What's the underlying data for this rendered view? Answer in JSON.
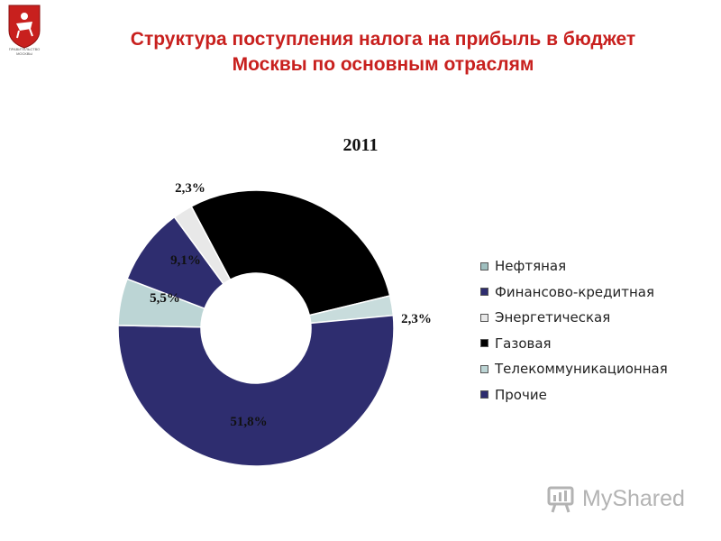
{
  "header": {
    "title_line1": "Структура поступления налога на прибыль в бюджет",
    "title_line2": "Москвы по основным отраслям"
  },
  "logo": {
    "caption_line1": "ПРАВИТЕЛЬСТВО",
    "caption_line2": "МОСКВЫ",
    "icon": "moscow-coat-of-arms-icon"
  },
  "watermark": {
    "text": "MyShared",
    "icon": "presentation-board-icon"
  },
  "chart_data": {
    "type": "pie",
    "variant": "doughnut",
    "title": "2011",
    "legend_position": "right",
    "slices": [
      {
        "name": "Газовая",
        "value": 29.0,
        "label": "",
        "color": "#000000"
      },
      {
        "name": "Нефтяная",
        "value": 2.3,
        "label": "2,3%",
        "color": "#c8dcdc"
      },
      {
        "name": "Прочие",
        "value": 51.8,
        "label": "51,8%",
        "color": "#2e2d6f"
      },
      {
        "name": "Телекоммуникационная",
        "value": 5.5,
        "label": "5,5%",
        "color": "#bcd5d5"
      },
      {
        "name": "Финансово-кредитная",
        "value": 9.1,
        "label": "9,1%",
        "color": "#2e2d6f"
      },
      {
        "name": "Энергетическая",
        "value": 2.3,
        "label": "2,3%",
        "color": "#e8e8e8"
      }
    ],
    "legend": [
      {
        "label": "Нефтяная",
        "color": "#9fbfbf"
      },
      {
        "label": "Финансово-кредитная",
        "color": "#2e2d6f"
      },
      {
        "label": "Энергетическая",
        "color": "#e8e8e8"
      },
      {
        "label": "Газовая",
        "color": "#000000"
      },
      {
        "label": "Телекоммуникационная",
        "color": "#bcd5d5"
      },
      {
        "label": "Прочие",
        "color": "#2e2d6f"
      }
    ]
  }
}
